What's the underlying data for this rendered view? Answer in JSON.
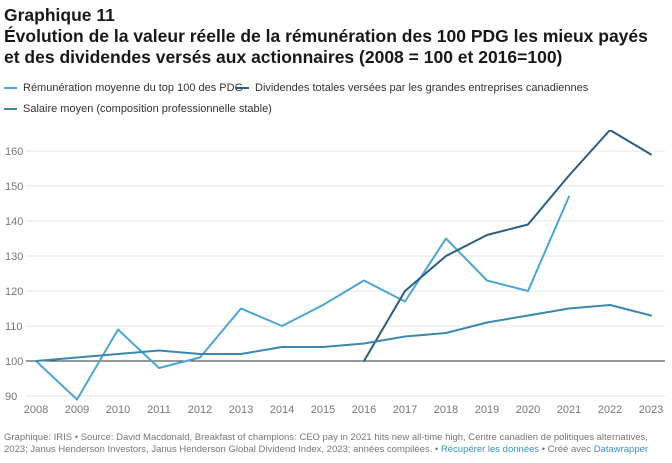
{
  "header": {
    "kicker": "Graphique 11",
    "title": "Évolution de la valeur réelle de la rémunération des 100 PDG les mieux payés et des dividendes versés aux actionnaires (2008 = 100 et 2016=100)"
  },
  "footer": {
    "source": "Graphique: IRIS • Source: David Macdonald, Breakfast of champions: CEO pay in 2021 hits new all-time high, Centre canadien de politiques alternatives, 2023; Janus Henderson Investors, Janus Henderson Global Dividend Index, 2023; années compilées. •",
    "download_link": "Récupérer les données",
    "separator": " • Créé avec ",
    "tool_link": "Datawrapper"
  },
  "colors": {
    "ceo": "#4aa6d6",
    "dividends": "#2a5d85",
    "salary": "#3a88b0",
    "grid": "#e4e4e4",
    "axis": "#333333"
  },
  "chart_data": {
    "type": "line",
    "x": [
      2008,
      2009,
      2010,
      2011,
      2012,
      2013,
      2014,
      2015,
      2016,
      2017,
      2018,
      2019,
      2020,
      2021,
      2022,
      2023
    ],
    "ylim": [
      88,
      166
    ],
    "yticks": [
      90,
      100,
      110,
      120,
      130,
      140,
      150,
      160
    ],
    "grid": true,
    "legend_position": "top",
    "series": [
      {
        "name": "Rémunération moyenne du top 100 des PDG",
        "color_key": "ceo",
        "points": [
          [
            2008,
            100
          ],
          [
            2009,
            89
          ],
          [
            2010,
            109
          ],
          [
            2011,
            98
          ],
          [
            2012,
            101
          ],
          [
            2013,
            115
          ],
          [
            2014,
            110
          ],
          [
            2015,
            116
          ],
          [
            2016,
            123
          ],
          [
            2017,
            117
          ],
          [
            2018,
            135
          ],
          [
            2019,
            123
          ],
          [
            2020,
            120
          ],
          [
            2021,
            147
          ]
        ]
      },
      {
        "name": "Dividendes totales versées par les grandes entreprises canadiennes",
        "color_key": "dividends",
        "points": [
          [
            2016,
            100
          ],
          [
            2017,
            120
          ],
          [
            2018,
            130
          ],
          [
            2019,
            136
          ],
          [
            2020,
            139
          ],
          [
            2021,
            153
          ],
          [
            2022,
            166
          ],
          [
            2023,
            159
          ]
        ]
      },
      {
        "name": "Salaire moyen (composition professionnelle stable)",
        "color_key": "salary",
        "points": [
          [
            2008,
            100
          ],
          [
            2009,
            101
          ],
          [
            2010,
            102
          ],
          [
            2011,
            103
          ],
          [
            2012,
            102
          ],
          [
            2013,
            102
          ],
          [
            2014,
            104
          ],
          [
            2015,
            104
          ],
          [
            2016,
            105
          ],
          [
            2017,
            107
          ],
          [
            2018,
            108
          ],
          [
            2019,
            111
          ],
          [
            2020,
            113
          ],
          [
            2021,
            115
          ],
          [
            2022,
            116
          ],
          [
            2023,
            113
          ]
        ]
      }
    ]
  }
}
